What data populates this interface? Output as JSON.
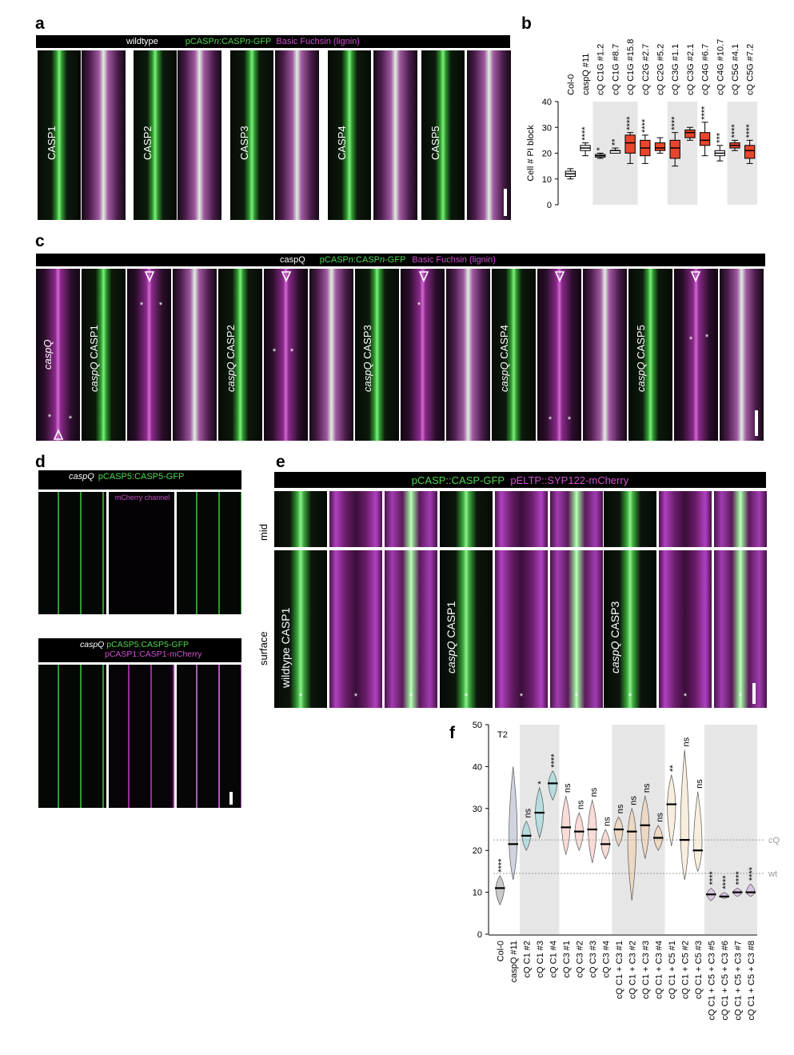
{
  "figure": {
    "panel_labels": [
      "a",
      "b",
      "c",
      "d",
      "e",
      "f"
    ],
    "a": {
      "genotype": "wildtype",
      "construct_parts": [
        "pCASP",
        "n",
        ":CASP",
        "n",
        "-GFP"
      ],
      "stain": "Basic Fuchsin (lignin)",
      "labels": [
        "CASP1",
        "CASP2",
        "CASP3",
        "CASP4",
        "CASP5"
      ]
    },
    "c": {
      "genotype": "caspQ",
      "construct_parts": [
        "pCASP",
        "n",
        ":CASP",
        "n",
        "-GFP"
      ],
      "stain": "Basic Fuchsin (lignin)",
      "first_label": "caspQ",
      "line_prefix": "caspQ",
      "lines": [
        "CASP1",
        "CASP2",
        "CASP3",
        "CASP4",
        "CASP5"
      ],
      "asterisk": "*"
    },
    "d": {
      "top": {
        "genotype": "caspQ",
        "construct": "pCASP5:CASP5-GFP",
        "channel": "mCherry channel"
      },
      "bottom": {
        "genotype": "caspQ",
        "construct_gfp": "pCASP5:CASP5-GFP",
        "construct_mcherry": "pCASP1:CASP1-mCherry"
      }
    },
    "e": {
      "construct_gfp": "pCASP::CASP-GFP",
      "construct_mcherry": "pELTP::SYP122-mCherry",
      "rows": [
        "mid",
        "surface"
      ],
      "lines": [
        {
          "genotype": "wildtype",
          "name": "CASP1"
        },
        {
          "genotype": "caspQ",
          "name": "CASP1"
        },
        {
          "genotype": "caspQ",
          "name": "CASP3"
        }
      ],
      "asterisk": "*"
    }
  },
  "chart_data": [
    {
      "type": "box",
      "ylabel": "Cell # PI block",
      "categories": [
        "Col-0",
        "caspQ #11",
        "cQ C1G #1.2",
        "cQ C1G #8.7",
        "cQ C1G #15.8",
        "cQ C2G #2.7",
        "cQ C2G #5.2",
        "cQ C3G #1.1",
        "cQ C3G #2.1",
        "cQ C4G #6.7",
        "cQ C4G #10.7",
        "cQ C5G #4.1",
        "cQ C5G #7.2"
      ],
      "medians": [
        12,
        22,
        19,
        21,
        24,
        22,
        22,
        22,
        28,
        25,
        20,
        23,
        21
      ],
      "q1": [
        11,
        21,
        18.5,
        20,
        20,
        19,
        21,
        18,
        26,
        23,
        19,
        22,
        18
      ],
      "q3": [
        13,
        23,
        19.5,
        21,
        27,
        25,
        24,
        25,
        29,
        28,
        21,
        24,
        23
      ],
      "whisker_low": [
        10,
        19,
        18,
        20,
        16,
        16,
        20,
        15,
        25,
        19,
        17,
        21,
        16
      ],
      "whisker_high": [
        14,
        24,
        20,
        22,
        28,
        27,
        26,
        28,
        30,
        32,
        23,
        25,
        25
      ],
      "colors": [
        "#ffffff",
        "#ffffff",
        "#ffffff",
        "#ffffff",
        "#e8452c",
        "#e8452c",
        "#e8452c",
        "#e8452c",
        "#e8452c",
        "#e8452c",
        "#ffffff",
        "#e8452c",
        "#e8452c"
      ],
      "significance": [
        null,
        "****",
        "*",
        "**",
        "****",
        "****",
        null,
        "****",
        null,
        "****",
        "***",
        "****",
        "****"
      ],
      "shaded": [
        false,
        false,
        true,
        true,
        true,
        false,
        false,
        true,
        true,
        false,
        false,
        true,
        true
      ],
      "ylim": [
        0,
        40
      ],
      "yticks": [
        0,
        10,
        20,
        30,
        40
      ]
    },
    {
      "type": "violin",
      "label": "T2",
      "categories": [
        "Col-0",
        "caspQ #11",
        "cQ C1 #2",
        "cQ C1 #3",
        "cQ C1 #4",
        "cQ C3 #1",
        "cQ C3 #2",
        "cQ C3 #3",
        "cQ C3 #4",
        "cQ C1 + C3 #1",
        "cQ C1 + C3 #2",
        "cQ C1 + C3 #3",
        "cQ C1 + C3 #4",
        "cQ C1 + C5 #1",
        "cQ C1 + C5 #2",
        "cQ C1 + C5 #3",
        "cQ C1 + C5 + C3 #5",
        "cQ C1 + C5 + C3 #6",
        "cQ C1 + C5 + C3 #7",
        "cQ C1 + C5 + C3 #8"
      ],
      "medians": [
        11,
        21.5,
        23.5,
        29,
        36,
        25.5,
        24.5,
        25,
        21.5,
        25,
        24.5,
        26,
        23,
        31,
        22.5,
        20,
        9.5,
        9,
        10,
        10
      ],
      "mins": [
        7,
        13,
        20,
        23,
        32,
        19,
        20,
        17,
        18,
        21,
        8,
        18,
        20,
        21,
        13,
        15,
        8,
        8.5,
        9,
        9
      ],
      "maxs": [
        14,
        40,
        27,
        35,
        39,
        33,
        29,
        32,
        25,
        28,
        30,
        33,
        26,
        38,
        44,
        34,
        11,
        10,
        11,
        12
      ],
      "colors": [
        "#8a8a8a",
        "#9aa0b8",
        "#7fd3d8",
        "#7fd3d8",
        "#7fd3d8",
        "#f2b0a8",
        "#f2b0a8",
        "#f2b0a8",
        "#f2b0a8",
        "#f5c79a",
        "#f5c79a",
        "#f5c79a",
        "#f5c79a",
        "#f0d9b5",
        "#f0d9b5",
        "#f0d9b5",
        "#c9a0dc",
        "#c9a0dc",
        "#c9a0dc",
        "#c9a0dc"
      ],
      "significance": [
        "****",
        null,
        "ns",
        "*",
        "****",
        "ns",
        "ns",
        "ns",
        "ns",
        "ns",
        "ns",
        "ns",
        "ns",
        "**",
        "ns",
        "ns",
        "****",
        "****",
        "****",
        "****"
      ],
      "shaded": [
        false,
        false,
        true,
        true,
        true,
        false,
        false,
        false,
        false,
        true,
        true,
        true,
        true,
        false,
        false,
        false,
        true,
        true,
        true,
        true
      ],
      "reference_lines": [
        {
          "label": "cQ",
          "value": 22.5
        },
        {
          "label": "wt",
          "value": 14.5
        }
      ],
      "ylim": [
        0,
        50
      ],
      "yticks": [
        0,
        10,
        20,
        30,
        40,
        50
      ]
    }
  ]
}
